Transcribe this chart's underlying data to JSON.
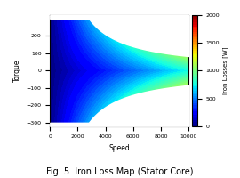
{
  "title": "Fig. 5. Iron Loss Map (Stator Core)",
  "xlabel": "Speed",
  "ylabel": "Torque",
  "colorbar_label": "Iron Losses [W]",
  "speed_min": 0,
  "speed_max": 10000,
  "torque_min": -320,
  "torque_max": 320,
  "loss_min": 0,
  "loss_max": 2000,
  "xticks": [
    0,
    2000,
    4000,
    6000,
    8000,
    10000
  ],
  "yticks": [
    -300,
    -200,
    -100,
    0,
    100,
    200
  ],
  "colorbar_ticks": [
    0,
    500,
    1000,
    1500,
    2000
  ],
  "base_speed": 2800,
  "torque_rated": 300,
  "title_fontsize": 7,
  "axis_fontsize": 5.5,
  "tick_fontsize": 4.5,
  "cb_fontsize": 5
}
